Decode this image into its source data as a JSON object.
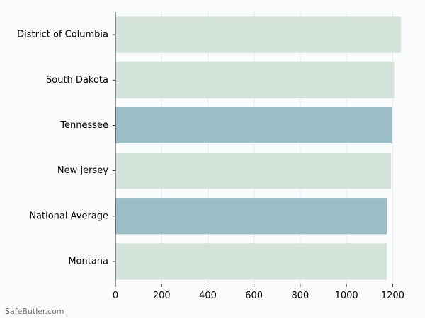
{
  "chart_data": {
    "type": "bar",
    "orientation": "horizontal",
    "categories": [
      "District of Columbia",
      "South Dakota",
      "Tennessee",
      "New Jersey",
      "National Average",
      "Montana"
    ],
    "values": [
      1236,
      1206,
      1197,
      1193,
      1175,
      1175
    ],
    "highlighted": [
      false,
      false,
      true,
      false,
      true,
      false
    ],
    "xlim": [
      0,
      1300
    ],
    "xticks": [
      0,
      200,
      400,
      600,
      800,
      1000,
      1200
    ],
    "grid": "vertical",
    "title": "",
    "xlabel": "",
    "ylabel": "",
    "colors": {
      "default": "#d4e3d9",
      "highlight": "#99bec6",
      "grid": "#e8e8e8",
      "axis": "#000000"
    }
  },
  "watermark": "SafeButler.com"
}
